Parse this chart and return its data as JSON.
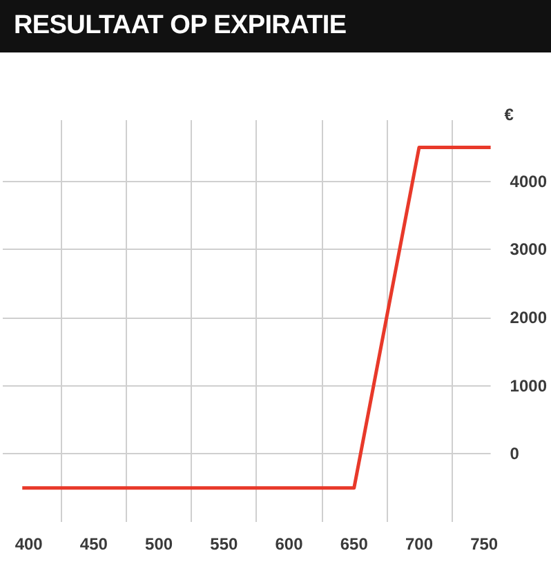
{
  "chart_data": {
    "type": "line",
    "title": "RESULTAAT OP EXPIRATIE",
    "ylabel": "€",
    "x": [
      395,
      650,
      700,
      755
    ],
    "series": [
      {
        "color": "#e8392a",
        "values": [
          -500,
          -500,
          4500,
          4500
        ]
      }
    ],
    "xlim": [
      380,
      755
    ],
    "ylim": [
      -1000,
      4900
    ],
    "xticks": [
      400,
      {
        "value": 425,
        "label": null
      },
      450,
      {
        "value": 475,
        "label": null
      },
      500,
      {
        "value": 525,
        "label": null
      },
      550,
      {
        "value": 575,
        "label": null
      },
      600,
      {
        "value": 625,
        "label": null
      },
      650,
      {
        "value": 675,
        "label": null
      },
      700,
      {
        "value": 725,
        "label": null
      },
      750
    ],
    "yticks": [
      0,
      1000,
      2000,
      3000,
      4000
    ],
    "grid": true
  }
}
